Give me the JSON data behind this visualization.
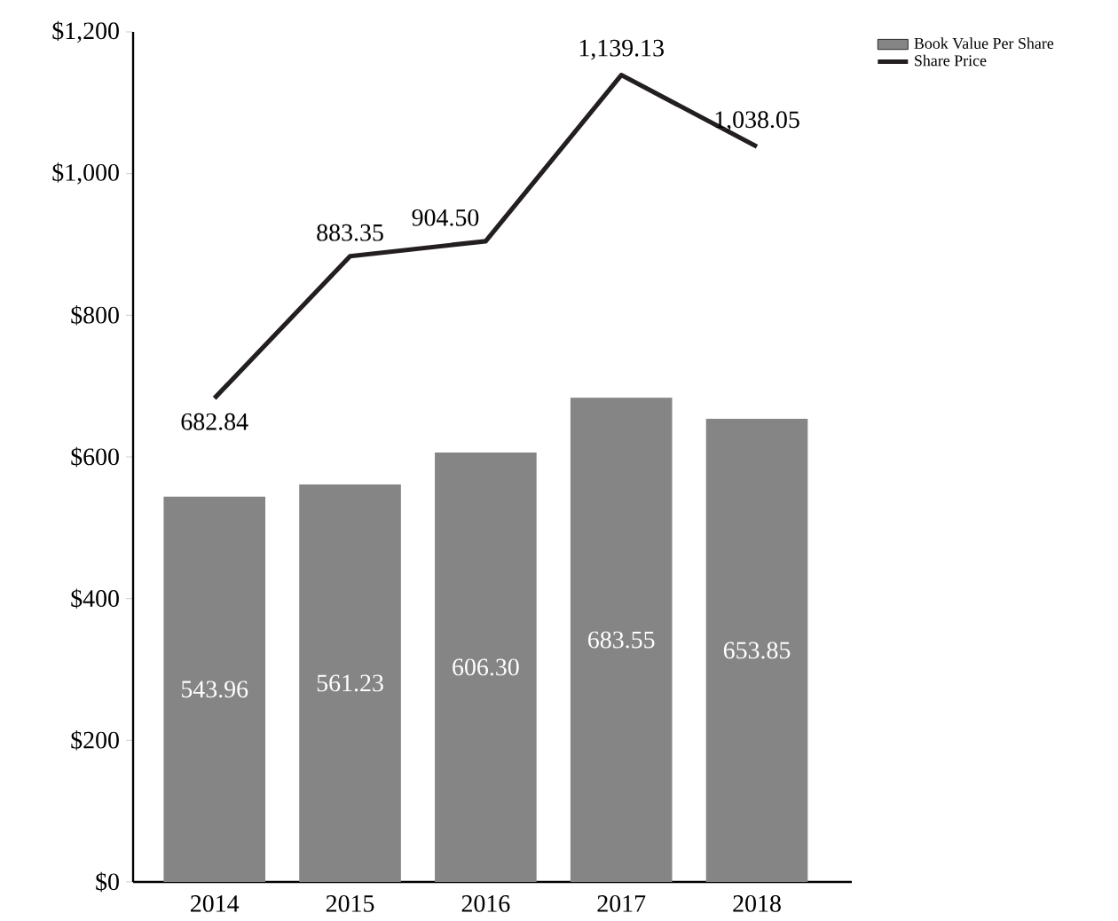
{
  "chart_data": {
    "type": "bar",
    "categories": [
      "2014",
      "2015",
      "2016",
      "2017",
      "2018"
    ],
    "series": [
      {
        "name": "Book Value Per Share",
        "color": "#858586",
        "values": [
          543.96,
          561.23,
          606.3,
          683.55,
          653.85
        ],
        "value_labels": [
          "543.96",
          "561.23",
          "606.30",
          "683.55",
          "653.85"
        ]
      },
      {
        "name": "Share Price",
        "type": "line",
        "color": "#231f20",
        "values": [
          682.84,
          883.35,
          904.5,
          1139.13,
          1038.05
        ],
        "value_labels": [
          "682.84",
          "883.35",
          "904.50",
          "1,139.13",
          "1,038.05"
        ]
      }
    ],
    "ylim": [
      0,
      1200
    ],
    "yticks": [
      {
        "value": 0,
        "label": "$0"
      },
      {
        "value": 200,
        "label": "$200"
      },
      {
        "value": 400,
        "label": "$400"
      },
      {
        "value": 600,
        "label": "$600"
      },
      {
        "value": 800,
        "label": "$800"
      },
      {
        "value": 1000,
        "label": "$1,000"
      },
      {
        "value": 1200,
        "label": "$1,200"
      }
    ],
    "legend": "top right"
  }
}
